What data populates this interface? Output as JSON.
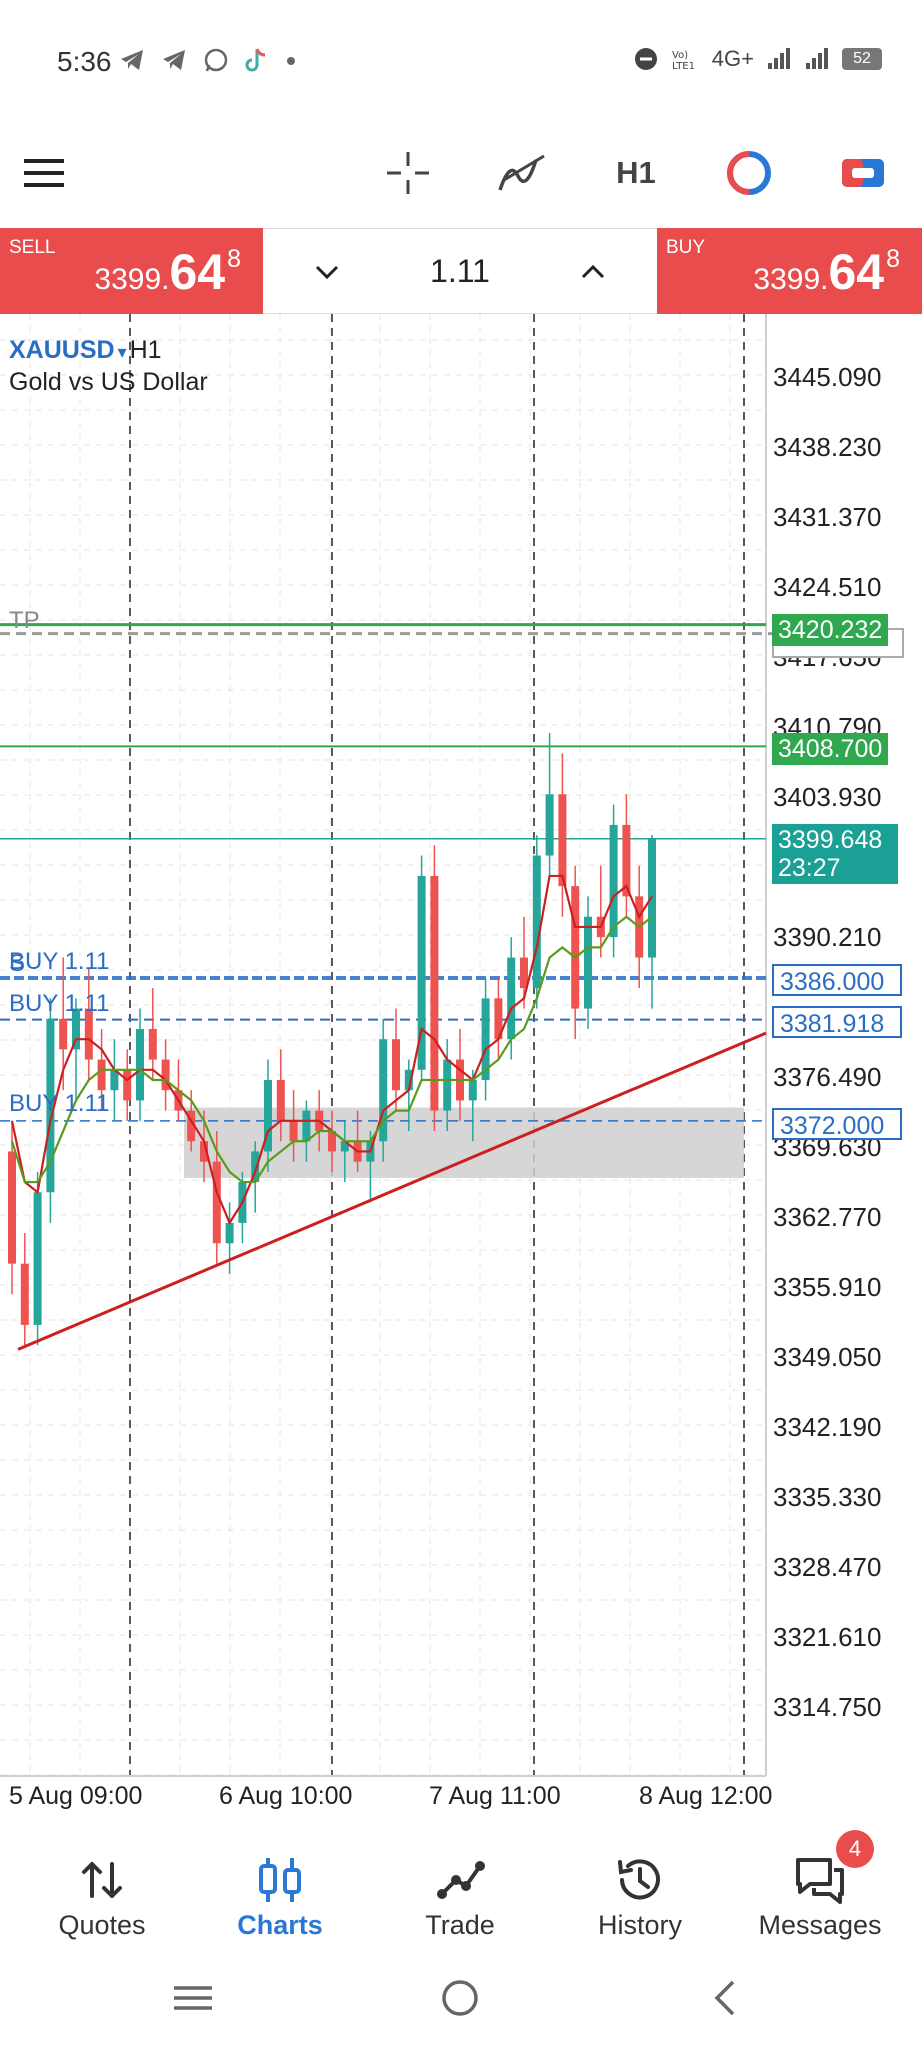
{
  "status_bar": {
    "time": "5:36",
    "network": "4G+",
    "battery": "52",
    "left_icons": [
      "telegram-icon",
      "telegram-icon",
      "whatsapp-icon",
      "tiktok-icon",
      "dot-icon"
    ],
    "right_icons": [
      "dnd-icon",
      "volte-icon",
      "signal-icon",
      "signal-icon",
      "battery-icon"
    ]
  },
  "toolbar": {
    "timeframe": "H1",
    "icons": [
      "menu-icon",
      "crosshair-icon",
      "indicators-icon",
      "timeframe",
      "color-scheme-icon",
      "objects-icon"
    ]
  },
  "trade_panel": {
    "sell_label": "SELL",
    "sell_price_main": "3399.",
    "sell_price_big": "64",
    "sell_price_sup": "8",
    "buy_label": "BUY",
    "buy_price_main": "3399.",
    "buy_price_big": "64",
    "buy_price_sup": "8",
    "volume": "1.11",
    "colors": {
      "sell_bg": "#e84c4c",
      "buy_bg": "#e84c4c"
    }
  },
  "chart": {
    "symbol": "XAUUSD",
    "dropdown_glyph": "▾",
    "timeframe": "H1",
    "description": "Gold vs US Dollar",
    "price_axis": [
      "3445.090",
      "3438.230",
      "3431.370",
      "3424.510",
      "3417.650",
      "3410.790",
      "3403.930",
      "3390.210",
      "3376.490",
      "3369.630",
      "3362.770",
      "3355.910",
      "3349.050",
      "3342.190",
      "3335.330",
      "3328.470",
      "3321.610",
      "3314.750"
    ],
    "time_axis": [
      "5 Aug 09:00",
      "6 Aug 10:00",
      "7 Aug 11:00",
      "8 Aug 12:00"
    ],
    "tp_label": "TP",
    "tp_price": "3420.232",
    "levels": {
      "resistance": "3408.700",
      "current_price": "3399.648",
      "countdown": "23:27"
    },
    "orders": [
      {
        "label": "BUY 1.11",
        "price": "3386.000"
      },
      {
        "label": "BUY 1.11",
        "price": "3381.918"
      },
      {
        "label": "BUY 1.11",
        "price": "3372.000"
      }
    ],
    "extra_order_glyph": "S",
    "colors": {
      "bull": "#26a69a",
      "bear": "#ef5350",
      "ma_fast": "#cc1f1f",
      "ma_slow": "#5c9a1c",
      "trendline": "#cc1f1f",
      "level_line": "#2fa84f",
      "order_line": "#2a6dc4",
      "zone": "#cfcfcf"
    }
  },
  "chart_data": {
    "type": "candlestick",
    "symbol": "XAUUSD",
    "timeframe": "H1",
    "x": [
      "5 Aug 09:00",
      "6 Aug 10:00",
      "7 Aug 11:00",
      "8 Aug 12:00"
    ],
    "ylim": [
      3310,
      3450
    ],
    "candles": [
      [
        3369,
        3372,
        3355,
        3358
      ],
      [
        3358,
        3361,
        3350,
        3352
      ],
      [
        3352,
        3367,
        3350,
        3365
      ],
      [
        3365,
        3384,
        3362,
        3382
      ],
      [
        3382,
        3388,
        3375,
        3379
      ],
      [
        3379,
        3384,
        3374,
        3383
      ],
      [
        3383,
        3387,
        3376,
        3378
      ],
      [
        3378,
        3381,
        3373,
        3375
      ],
      [
        3375,
        3380,
        3372,
        3377
      ],
      [
        3377,
        3379,
        3372,
        3374
      ],
      [
        3374,
        3383,
        3372,
        3381
      ],
      [
        3381,
        3385,
        3376,
        3378
      ],
      [
        3378,
        3380,
        3373,
        3375
      ],
      [
        3375,
        3378,
        3372,
        3373
      ],
      [
        3373,
        3375,
        3369,
        3370
      ],
      [
        3370,
        3373,
        3366,
        3368
      ],
      [
        3368,
        3371,
        3358,
        3360
      ],
      [
        3360,
        3364,
        3357,
        3362
      ],
      [
        3362,
        3367,
        3360,
        3366
      ],
      [
        3366,
        3370,
        3363,
        3369
      ],
      [
        3369,
        3378,
        3367,
        3376
      ],
      [
        3376,
        3379,
        3370,
        3372
      ],
      [
        3372,
        3375,
        3368,
        3370
      ],
      [
        3370,
        3374,
        3368,
        3373
      ],
      [
        3373,
        3375,
        3369,
        3371
      ],
      [
        3371,
        3373,
        3367,
        3369
      ],
      [
        3369,
        3372,
        3366,
        3370
      ],
      [
        3370,
        3373,
        3367,
        3368
      ],
      [
        3368,
        3371,
        3364,
        3370
      ],
      [
        3370,
        3382,
        3368,
        3380
      ],
      [
        3380,
        3383,
        3373,
        3375
      ],
      [
        3375,
        3378,
        3371,
        3377
      ],
      [
        3377,
        3398,
        3376,
        3396
      ],
      [
        3396,
        3399,
        3371,
        3373
      ],
      [
        3373,
        3380,
        3371,
        3378
      ],
      [
        3378,
        3381,
        3372,
        3374
      ],
      [
        3374,
        3377,
        3370,
        3376
      ],
      [
        3376,
        3386,
        3374,
        3384
      ],
      [
        3384,
        3386,
        3378,
        3380
      ],
      [
        3380,
        3390,
        3378,
        3388
      ],
      [
        3388,
        3392,
        3383,
        3385
      ],
      [
        3385,
        3400,
        3383,
        3398
      ],
      [
        3398,
        3410,
        3396,
        3404
      ],
      [
        3404,
        3408,
        3392,
        3395
      ],
      [
        3395,
        3397,
        3380,
        3383
      ],
      [
        3383,
        3394,
        3381,
        3392
      ],
      [
        3392,
        3397,
        3388,
        3390
      ],
      [
        3390,
        3403,
        3388,
        3401
      ],
      [
        3401,
        3404,
        3392,
        3394
      ],
      [
        3394,
        3397,
        3385,
        3388
      ],
      [
        3388,
        3400,
        3383,
        3399.648
      ]
    ],
    "moving_averages": [
      {
        "name": "fast",
        "values": [
          3372,
          3366,
          3365,
          3372,
          3377,
          3380,
          3380,
          3379,
          3377,
          3376,
          3377,
          3377,
          3376,
          3374,
          3372,
          3370,
          3365,
          3362,
          3364,
          3367,
          3371,
          3372,
          3372,
          3372,
          3372,
          3371,
          3370,
          3369,
          3369,
          3373,
          3374,
          3375,
          3381,
          3380,
          3378,
          3377,
          3376,
          3379,
          3380,
          3383,
          3384,
          3389,
          3396,
          3396,
          3391,
          3391,
          3391,
          3394,
          3395,
          3392,
          3394
        ]
      },
      {
        "name": "slow",
        "values": [
          3370,
          3366,
          3366,
          3368,
          3371,
          3374,
          3376,
          3377,
          3377,
          3377,
          3377,
          3376,
          3376,
          3375,
          3374,
          3372,
          3369,
          3367,
          3366,
          3366,
          3368,
          3369,
          3370,
          3370,
          3371,
          3371,
          3370,
          3370,
          3370,
          3372,
          3373,
          3373,
          3376,
          3376,
          3376,
          3376,
          3376,
          3377,
          3378,
          3380,
          3381,
          3384,
          3388,
          3389,
          3388,
          3389,
          3389,
          3391,
          3392,
          3391,
          3392
        ]
      }
    ],
    "horizontal_levels": [
      {
        "label": "TP",
        "value": 3420.232
      },
      {
        "label": "",
        "value": 3408.7
      },
      {
        "label": "",
        "value": 3399.648
      },
      {
        "label": "BUY 1.11",
        "value": 3386.0
      },
      {
        "label": "BUY 1.11",
        "value": 3381.918
      },
      {
        "label": "BUY 1.11",
        "value": 3372.0
      }
    ],
    "trendline": {
      "from": [
        "5 Aug 09:00",
        3349.6
      ],
      "to": [
        "8 Aug 12:00",
        3380.6
      ]
    },
    "zone": {
      "from": 3366.4,
      "to": 3373.3
    }
  },
  "bottom_nav": {
    "items": [
      {
        "label": "Quotes",
        "icon": "arrows-updown-icon",
        "active": false
      },
      {
        "label": "Charts",
        "icon": "candles-icon",
        "active": true
      },
      {
        "label": "Trade",
        "icon": "trend-icon",
        "active": false
      },
      {
        "label": "History",
        "icon": "history-icon",
        "active": false
      },
      {
        "label": "Messages",
        "icon": "chat-icon",
        "active": false
      }
    ],
    "messages_badge": "4"
  },
  "system_nav": {
    "buttons": [
      "recent-apps-icon",
      "home-icon",
      "back-icon"
    ]
  }
}
